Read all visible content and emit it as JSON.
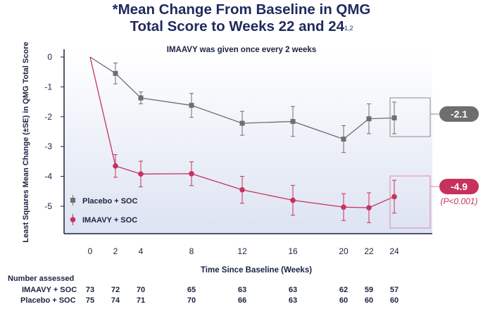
{
  "title": {
    "line1": "*Mean Change From Baseline in QMG",
    "line2": "Total Score to Weeks 22 and 24",
    "superscript": "1,2"
  },
  "chart_data": {
    "type": "line",
    "subtitle": "IMAAVY was given once every 2 weeks",
    "xlabel": "Time Since Baseline (Weeks)",
    "ylabel": "Least Squares Mean Change (±SE) in QMG Total Score",
    "x": [
      0,
      2,
      4,
      8,
      12,
      16,
      20,
      22,
      24
    ],
    "xticks": [
      "0",
      "2",
      "4",
      "8",
      "12",
      "16",
      "20",
      "22",
      "24"
    ],
    "yticks": [
      "0",
      "-1",
      "-2",
      "-3",
      "-4",
      "-5"
    ],
    "ylim": [
      -5.8,
      0.2
    ],
    "series": [
      {
        "name": "Placebo + SOC",
        "color": "#6e6e6e",
        "marker": "square",
        "values": [
          0,
          -0.55,
          -1.37,
          -1.62,
          -2.22,
          -2.16,
          -2.75,
          -2.07,
          -2.04
        ],
        "se": [
          0,
          0.35,
          0.2,
          0.4,
          0.4,
          0.5,
          0.45,
          0.5,
          0.53
        ],
        "end_label": "-2.1"
      },
      {
        "name": "IMAAVY + SOC",
        "color": "#c6325c",
        "marker": "circle",
        "values": [
          0,
          -3.65,
          -3.92,
          -3.91,
          -4.45,
          -4.8,
          -5.03,
          -5.05,
          -4.68
        ],
        "se": [
          0,
          0.38,
          0.43,
          0.4,
          0.45,
          0.5,
          0.45,
          0.5,
          0.55
        ],
        "end_label": "-4.9",
        "p_label": "(P<0.001)"
      }
    ]
  },
  "assessed": {
    "header": "Number assessed",
    "rows": [
      {
        "label": "IMAAVY + SOC",
        "values": [
          "73",
          "72",
          "70",
          "65",
          "63",
          "63",
          "62",
          "59",
          "57"
        ]
      },
      {
        "label": "Placebo + SOC",
        "values": [
          "75",
          "74",
          "71",
          "70",
          "66",
          "63",
          "60",
          "60",
          "60"
        ]
      }
    ]
  }
}
